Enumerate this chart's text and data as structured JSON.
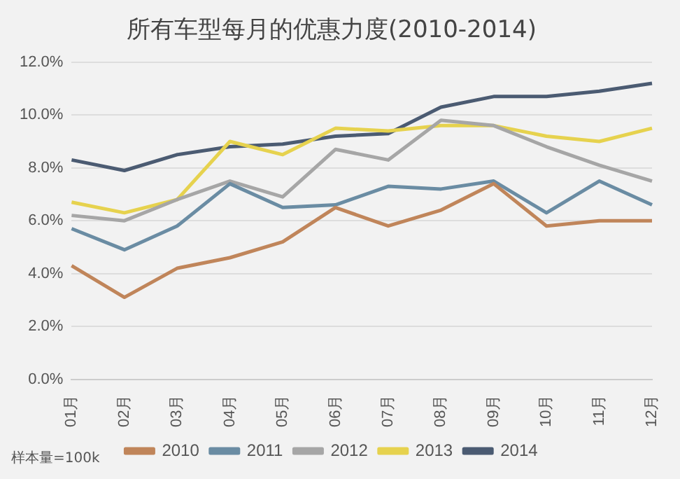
{
  "chart_data": {
    "type": "line",
    "title": "所有车型每月的优惠力度(2010-2014)",
    "categories": [
      "01月",
      "02月",
      "03月",
      "04月",
      "05月",
      "06月",
      "07月",
      "08月",
      "09月",
      "10月",
      "11月",
      "12月"
    ],
    "series": [
      {
        "name": "2010",
        "color": "#c0855a",
        "values": [
          4.3,
          3.1,
          4.2,
          4.6,
          5.2,
          6.5,
          5.8,
          6.4,
          7.4,
          5.8,
          6.0,
          6.0
        ]
      },
      {
        "name": "2011",
        "color": "#6a8ca3",
        "values": [
          5.7,
          4.9,
          5.8,
          7.4,
          6.5,
          6.6,
          7.3,
          7.2,
          7.5,
          6.3,
          7.5,
          6.6
        ]
      },
      {
        "name": "2012",
        "color": "#a6a6a6",
        "values": [
          6.2,
          6.0,
          6.8,
          7.5,
          6.9,
          8.7,
          8.3,
          9.8,
          9.6,
          8.8,
          8.1,
          7.5
        ]
      },
      {
        "name": "2013",
        "color": "#e6d24e",
        "values": [
          6.7,
          6.3,
          6.8,
          9.0,
          8.5,
          9.5,
          9.4,
          9.6,
          9.6,
          9.2,
          9.0,
          9.5
        ]
      },
      {
        "name": "2014",
        "color": "#4b5b72",
        "values": [
          8.3,
          7.9,
          8.5,
          8.8,
          8.9,
          9.2,
          9.3,
          10.3,
          10.7,
          10.7,
          10.9,
          11.2
        ]
      }
    ],
    "ylim": [
      0,
      12
    ],
    "yticks": [
      {
        "value": 0,
        "label": "0.0%"
      },
      {
        "value": 2,
        "label": "2.0%"
      },
      {
        "value": 4,
        "label": "4.0%"
      },
      {
        "value": 6,
        "label": "6.0%"
      },
      {
        "value": 8,
        "label": "8.0%"
      },
      {
        "value": 10,
        "label": "10.0%"
      },
      {
        "value": 12,
        "label": "12.0%"
      }
    ],
    "grid": "y",
    "legend": "bottom",
    "marker": "none",
    "line_style": "solid",
    "annotations": [
      "样本量=100k"
    ]
  }
}
